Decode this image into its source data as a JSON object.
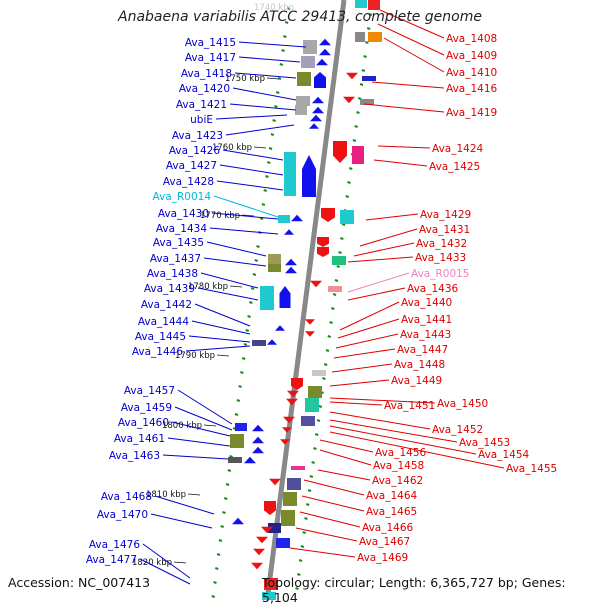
{
  "title": "Anabaena variabilis ATCC 29413, complete genome",
  "top_coordinate_label": "1740 kbp",
  "footer": {
    "accession": "Accession: NC_007413",
    "summary": "Topology: circular; Length: 6,365,727 bp; Genes: 5,104"
  },
  "colors": {
    "forward_label": "#0000cc",
    "reverse_label": "#dd0000",
    "forward_rna_label": "#00b8d8",
    "reverse_rna_label": "#f080c0",
    "backbone": "#888888",
    "tick": "#1a8c1a"
  },
  "kbp_markers": [
    "1750 kbp",
    "1760 kbp",
    "1770 kbp",
    "1780 kbp",
    "1790 kbp",
    "1800 kbp",
    "1810 kbp",
    "1820 kbp"
  ],
  "forward_genes": [
    "Ava_1415",
    "Ava_1417",
    "Ava_1418",
    "Ava_1420",
    "Ava_1421",
    "ubiE",
    "Ava_1423",
    "Ava_1426",
    "Ava_1427",
    "Ava_1428",
    "Ava_R0014",
    "Ava_1430",
    "Ava_1434",
    "Ava_1435",
    "Ava_1437",
    "Ava_1438",
    "Ava_1439",
    "Ava_1442",
    "Ava_1444",
    "Ava_1445",
    "Ava_1446",
    "Ava_1457",
    "Ava_1459",
    "Ava_1460",
    "Ava_1461",
    "Ava_1463",
    "Ava_1468",
    "Ava_1470",
    "Ava_1476",
    "Ava_1477"
  ],
  "reverse_genes": [
    "Ava_1408",
    "Ava_1409",
    "Ava_1410",
    "Ava_1416",
    "Ava_1419",
    "Ava_1424",
    "Ava_1425",
    "Ava_1429",
    "Ava_1431",
    "Ava_1432",
    "Ava_1433",
    "Ava_R0015",
    "Ava_1436",
    "Ava_1440",
    "Ava_1441",
    "Ava_1443",
    "Ava_1447",
    "Ava_1448",
    "Ava_1449",
    "Ava_1450",
    "Ava_1451",
    "Ava_1452",
    "Ava_1453",
    "Ava_1454",
    "Ava_1455",
    "Ava_1456",
    "Ava_1458",
    "Ava_1462",
    "Ava_1464",
    "Ava_1465",
    "Ava_1466",
    "Ava_1467",
    "Ava_1469"
  ]
}
